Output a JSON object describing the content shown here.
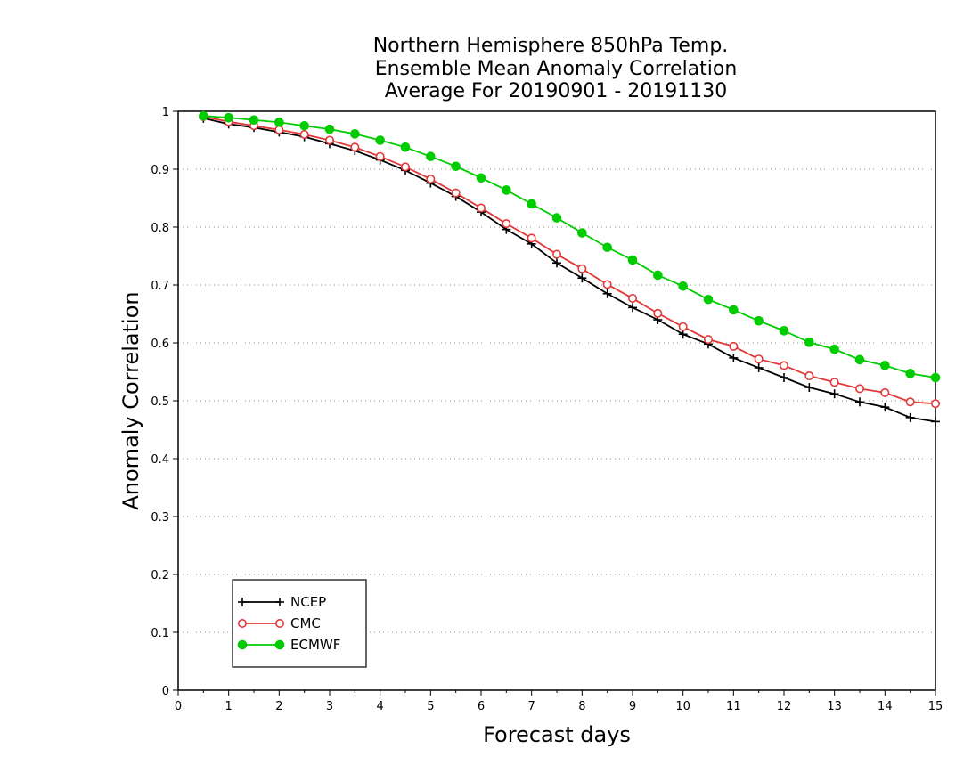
{
  "chart_data": {
    "type": "line",
    "title_lines": [
      "Northern Hemisphere 850hPa Temp.",
      "Ensemble Mean Anomaly Correlation",
      "Average For 20190901 - 20191130"
    ],
    "xlabel": "Forecast days",
    "ylabel": "Anomaly Correlation",
    "xlim": [
      0,
      15
    ],
    "ylim": [
      0,
      1
    ],
    "xticks": [
      "0",
      "1",
      "2",
      "3",
      "4",
      "5",
      "6",
      "7",
      "8",
      "9",
      "10",
      "11",
      "12",
      "13",
      "14",
      "15"
    ],
    "yticks": [
      "0",
      "0.1",
      "0.2",
      "0.3",
      "0.4",
      "0.5",
      "0.6",
      "0.7",
      "0.8",
      "0.9",
      "1"
    ],
    "grid": "horizontal dotted",
    "legend_position": "bottom-left",
    "x": [
      0.5,
      1,
      1.5,
      2,
      2.5,
      3,
      3.5,
      4,
      4.5,
      5,
      5.5,
      6,
      6.5,
      7,
      7.5,
      8,
      8.5,
      9,
      9.5,
      10,
      10.5,
      11,
      11.5,
      12,
      12.5,
      13,
      13.5,
      14,
      14.5,
      15
    ],
    "series": [
      {
        "name": "NCEP",
        "color": "#000000",
        "marker": "plus",
        "values": [
          0.988,
          0.978,
          0.972,
          0.964,
          0.956,
          0.944,
          0.932,
          0.916,
          0.898,
          0.876,
          0.853,
          0.826,
          0.796,
          0.771,
          0.738,
          0.712,
          0.685,
          0.661,
          0.64,
          0.615,
          0.598,
          0.574,
          0.557,
          0.54,
          0.523,
          0.512,
          0.498,
          0.489,
          0.471,
          0.464
        ]
      },
      {
        "name": "CMC",
        "color": "#e23838",
        "marker": "open-circle",
        "values": [
          0.991,
          0.982,
          0.975,
          0.968,
          0.96,
          0.95,
          0.938,
          0.922,
          0.904,
          0.883,
          0.859,
          0.833,
          0.806,
          0.781,
          0.753,
          0.728,
          0.701,
          0.677,
          0.651,
          0.628,
          0.606,
          0.594,
          0.572,
          0.561,
          0.543,
          0.532,
          0.521,
          0.514,
          0.498,
          0.495
        ]
      },
      {
        "name": "ECMWF",
        "color": "#00cc00",
        "marker": "filled-circle",
        "values": [
          0.992,
          0.989,
          0.985,
          0.981,
          0.975,
          0.969,
          0.961,
          0.95,
          0.938,
          0.922,
          0.905,
          0.885,
          0.864,
          0.84,
          0.816,
          0.79,
          0.765,
          0.743,
          0.717,
          0.698,
          0.675,
          0.657,
          0.638,
          0.621,
          0.601,
          0.589,
          0.571,
          0.561,
          0.547,
          0.54
        ]
      }
    ]
  }
}
